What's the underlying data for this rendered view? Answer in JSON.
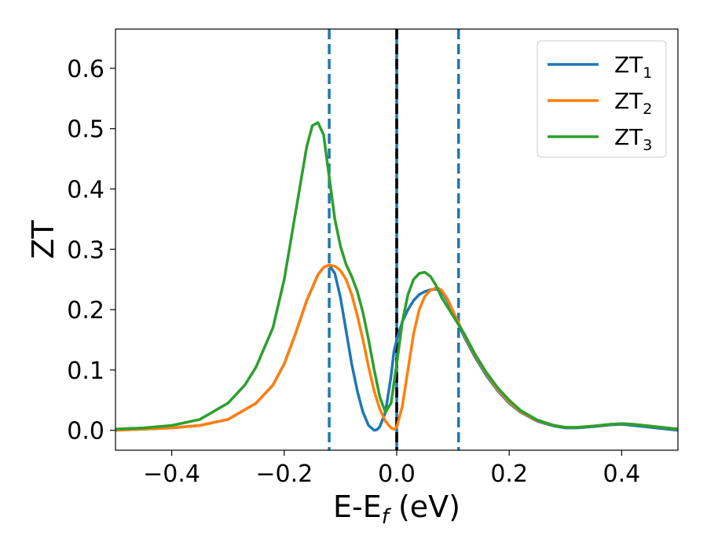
{
  "chart_data": {
    "type": "line",
    "title": "",
    "xlabel": {
      "main": "E-E",
      "sub": "f",
      "unit": " (eV)"
    },
    "ylabel": "ZT",
    "xlim": [
      -0.5,
      0.5
    ],
    "ylim": [
      -0.033,
      0.665
    ],
    "xticks": [
      -0.4,
      -0.2,
      0.0,
      0.2,
      0.4
    ],
    "xtick_labels": [
      "−0.4",
      "−0.2",
      "0.0",
      "0.2",
      "0.4"
    ],
    "yticks": [
      0.0,
      0.1,
      0.2,
      0.3,
      0.4,
      0.5,
      0.6
    ],
    "ytick_labels": [
      "0.0",
      "0.1",
      "0.2",
      "0.3",
      "0.4",
      "0.5",
      "0.6"
    ],
    "grid": false,
    "legend_position": "top-right",
    "vlines": [
      {
        "x": -0.12,
        "style": "dashed",
        "color": "#1f77b4"
      },
      {
        "x": 0.0,
        "style": "solid",
        "color": "#1f77b4"
      },
      {
        "x": 0.0,
        "style": "dashed",
        "color": "#000000"
      },
      {
        "x": 0.11,
        "style": "dashed",
        "color": "#1f77b4"
      }
    ],
    "series": [
      {
        "name": "ZT",
        "sub": "1",
        "color": "#1f77b4",
        "x": [
          -0.5,
          -0.45,
          -0.4,
          -0.35,
          -0.3,
          -0.25,
          -0.22,
          -0.2,
          -0.18,
          -0.16,
          -0.14,
          -0.13,
          -0.12,
          -0.11,
          -0.1,
          -0.09,
          -0.08,
          -0.07,
          -0.06,
          -0.05,
          -0.04,
          -0.035,
          -0.03,
          -0.02,
          -0.01,
          -0.005,
          0.0,
          0.01,
          0.02,
          0.03,
          0.04,
          0.05,
          0.06,
          0.07,
          0.075,
          0.08,
          0.09,
          0.1,
          0.11,
          0.12,
          0.14,
          0.16,
          0.18,
          0.2,
          0.22,
          0.25,
          0.28,
          0.3,
          0.32,
          0.35,
          0.38,
          0.4,
          0.42,
          0.45,
          0.5
        ],
        "y": [
          0.0,
          0.002,
          0.004,
          0.008,
          0.018,
          0.045,
          0.075,
          0.11,
          0.16,
          0.215,
          0.258,
          0.27,
          0.274,
          0.26,
          0.22,
          0.165,
          0.11,
          0.065,
          0.03,
          0.008,
          0.0,
          0.001,
          0.006,
          0.03,
          0.09,
          0.13,
          0.15,
          0.18,
          0.2,
          0.215,
          0.225,
          0.23,
          0.233,
          0.234,
          0.233,
          0.23,
          0.215,
          0.195,
          0.175,
          0.155,
          0.12,
          0.09,
          0.065,
          0.045,
          0.03,
          0.015,
          0.007,
          0.004,
          0.004,
          0.006,
          0.009,
          0.01,
          0.008,
          0.005,
          0.0
        ]
      },
      {
        "name": "ZT",
        "sub": "2",
        "color": "#ff7f0e",
        "x": [
          -0.5,
          -0.45,
          -0.4,
          -0.35,
          -0.3,
          -0.25,
          -0.22,
          -0.2,
          -0.18,
          -0.16,
          -0.14,
          -0.13,
          -0.12,
          -0.11,
          -0.1,
          -0.09,
          -0.08,
          -0.07,
          -0.06,
          -0.05,
          -0.04,
          -0.03,
          -0.02,
          -0.01,
          -0.005,
          0.0,
          0.01,
          0.02,
          0.03,
          0.04,
          0.05,
          0.06,
          0.07,
          0.075,
          0.08,
          0.09,
          0.1,
          0.11,
          0.12,
          0.14,
          0.16,
          0.18,
          0.2,
          0.22,
          0.25,
          0.28,
          0.3,
          0.32,
          0.35,
          0.38,
          0.4,
          0.42,
          0.45,
          0.5
        ],
        "y": [
          0.0,
          0.002,
          0.004,
          0.008,
          0.018,
          0.045,
          0.075,
          0.11,
          0.16,
          0.215,
          0.258,
          0.27,
          0.274,
          0.272,
          0.265,
          0.25,
          0.225,
          0.19,
          0.15,
          0.105,
          0.065,
          0.035,
          0.015,
          0.004,
          0.002,
          0.005,
          0.04,
          0.1,
          0.16,
          0.2,
          0.222,
          0.232,
          0.236,
          0.235,
          0.232,
          0.218,
          0.198,
          0.178,
          0.158,
          0.123,
          0.093,
          0.067,
          0.047,
          0.031,
          0.016,
          0.008,
          0.005,
          0.005,
          0.007,
          0.01,
          0.011,
          0.01,
          0.007,
          0.002
        ]
      },
      {
        "name": "ZT",
        "sub": "3",
        "color": "#2ca02c",
        "x": [
          -0.5,
          -0.45,
          -0.4,
          -0.35,
          -0.3,
          -0.27,
          -0.25,
          -0.22,
          -0.2,
          -0.18,
          -0.16,
          -0.15,
          -0.14,
          -0.13,
          -0.12,
          -0.11,
          -0.1,
          -0.09,
          -0.08,
          -0.07,
          -0.06,
          -0.05,
          -0.04,
          -0.03,
          -0.02,
          -0.01,
          0.0,
          0.01,
          0.02,
          0.03,
          0.04,
          0.05,
          0.06,
          0.07,
          0.08,
          0.09,
          0.1,
          0.11,
          0.12,
          0.14,
          0.16,
          0.18,
          0.2,
          0.22,
          0.25,
          0.28,
          0.3,
          0.32,
          0.35,
          0.38,
          0.4,
          0.42,
          0.45,
          0.5
        ],
        "y": [
          0.002,
          0.004,
          0.008,
          0.018,
          0.045,
          0.075,
          0.105,
          0.17,
          0.25,
          0.36,
          0.47,
          0.505,
          0.51,
          0.49,
          0.42,
          0.35,
          0.305,
          0.275,
          0.255,
          0.23,
          0.195,
          0.15,
          0.1,
          0.055,
          0.03,
          0.045,
          0.11,
          0.18,
          0.225,
          0.25,
          0.26,
          0.262,
          0.255,
          0.24,
          0.22,
          0.205,
          0.19,
          0.175,
          0.16,
          0.125,
          0.095,
          0.07,
          0.05,
          0.033,
          0.017,
          0.008,
          0.005,
          0.005,
          0.007,
          0.01,
          0.011,
          0.01,
          0.007,
          0.002
        ]
      }
    ]
  }
}
